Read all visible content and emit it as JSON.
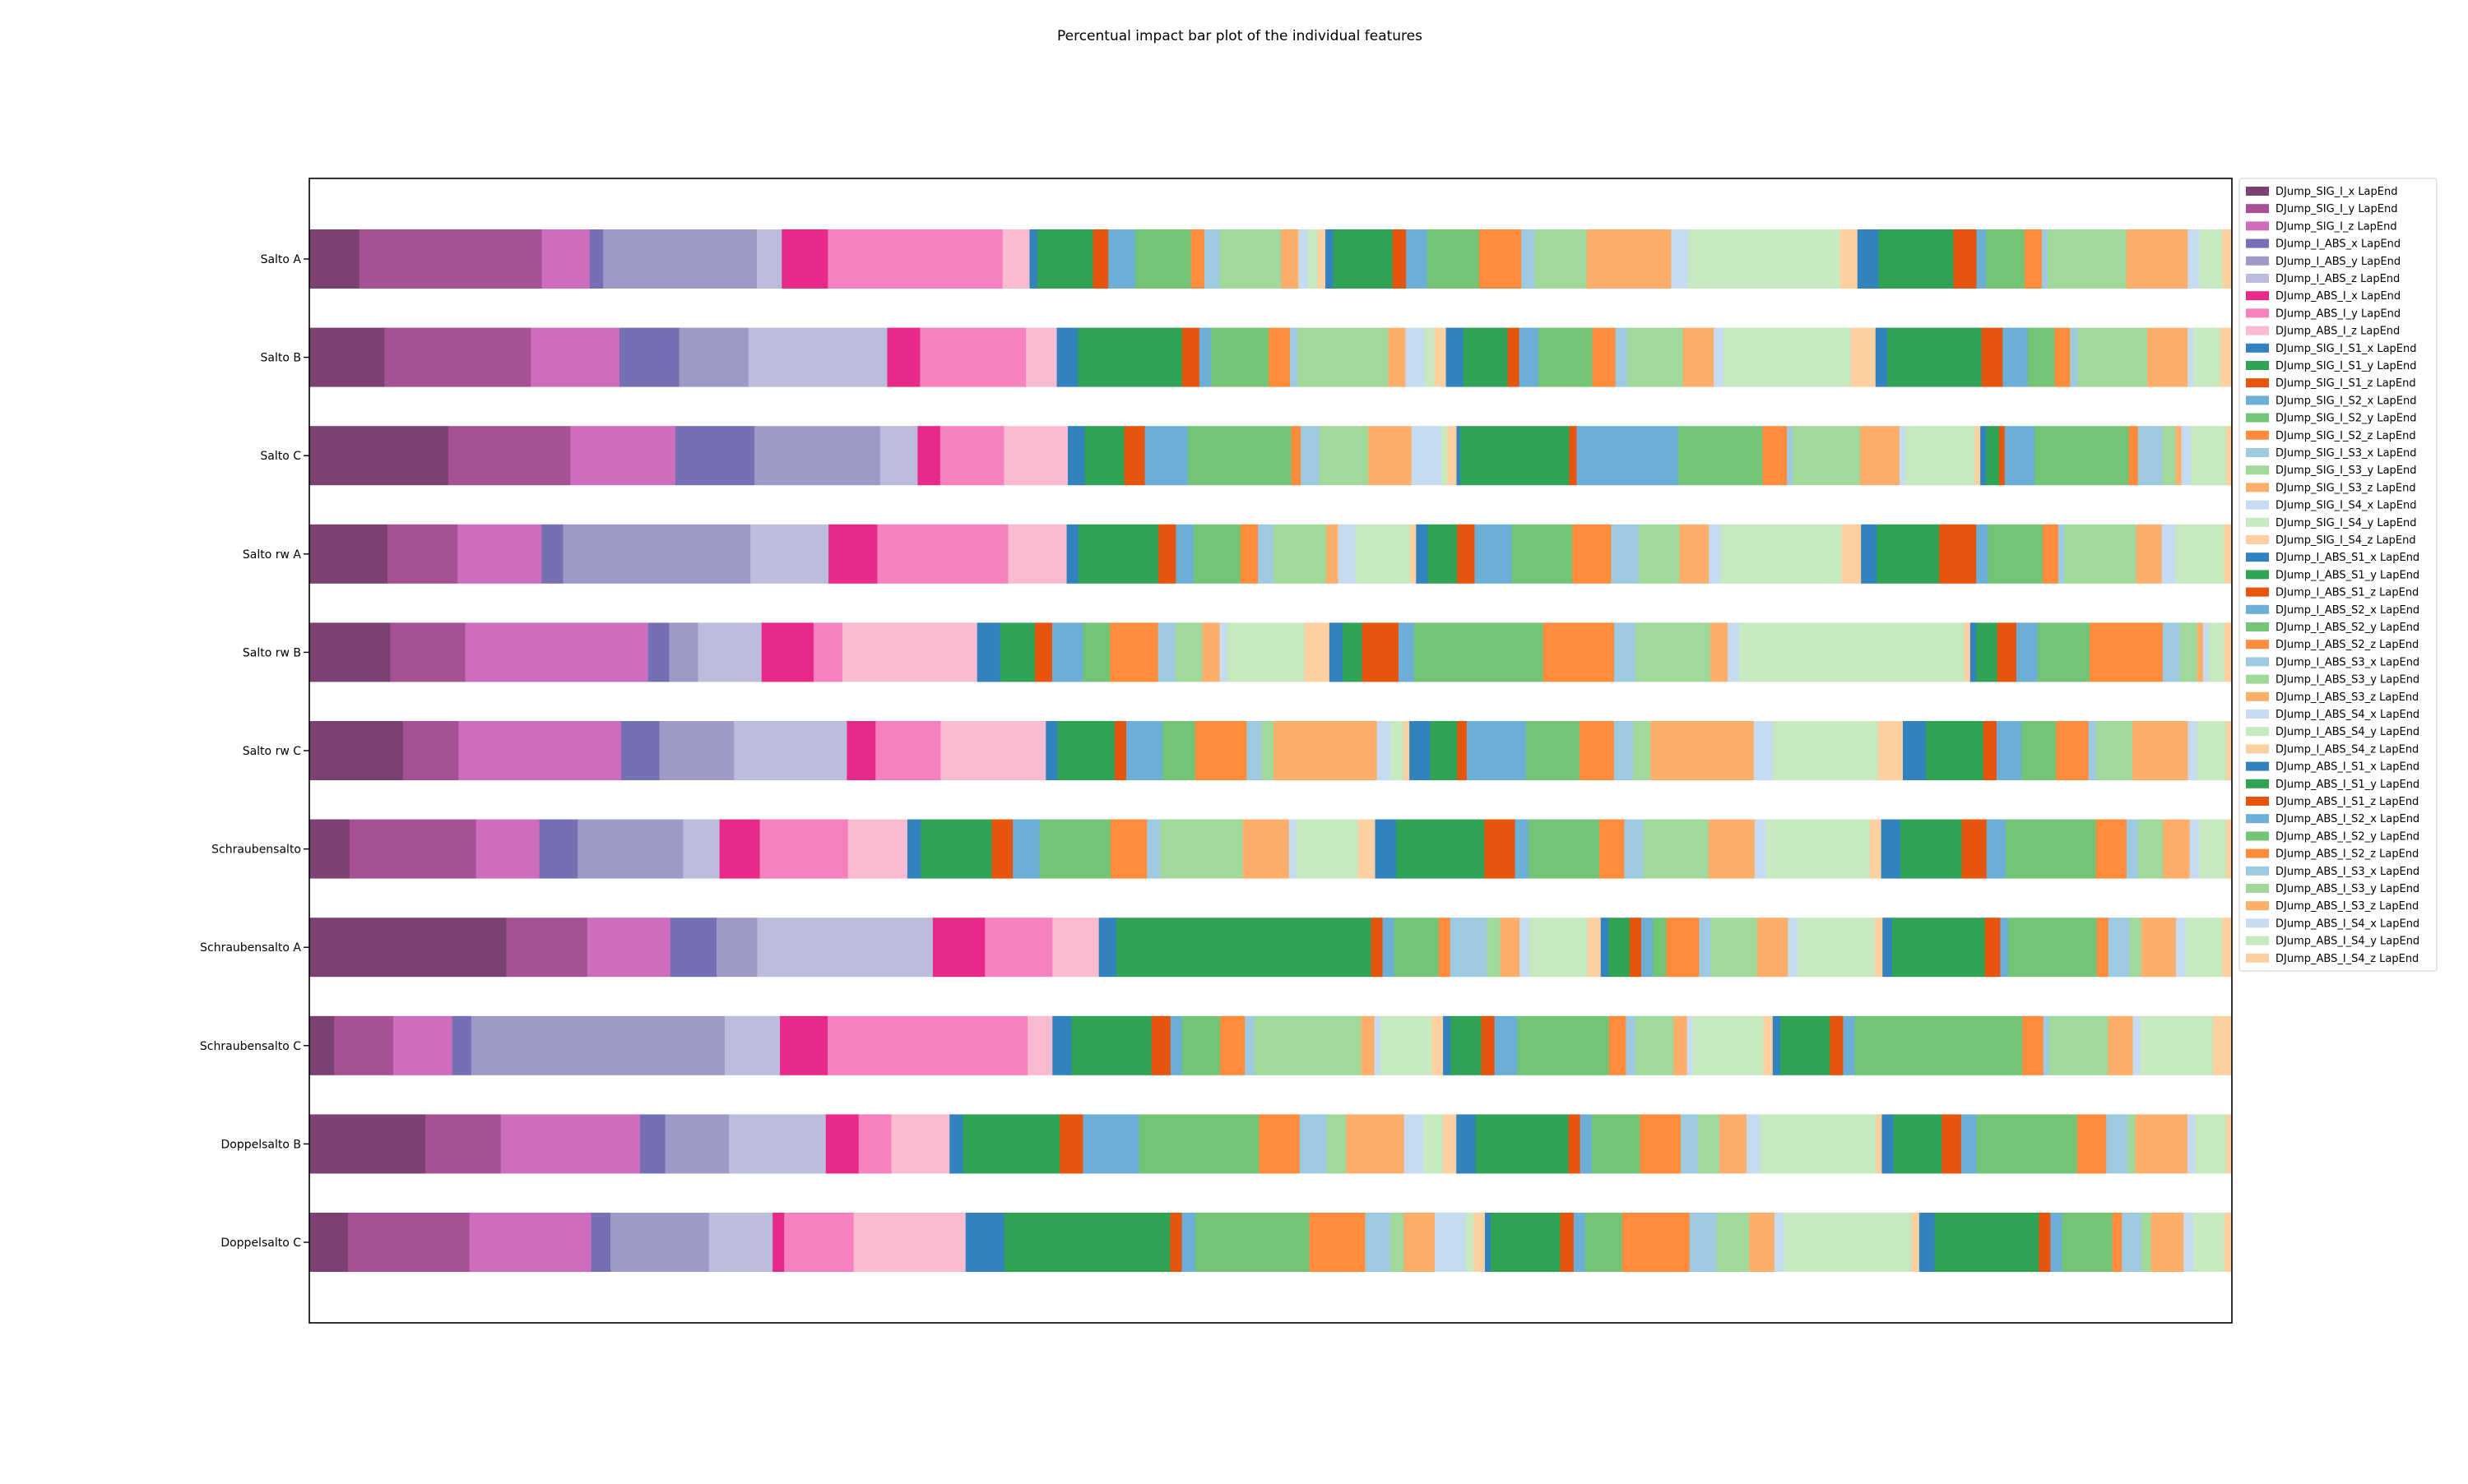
{
  "chart_data": {
    "type": "bar",
    "orientation": "horizontal",
    "stacked": true,
    "normalized": true,
    "title": "Percentual impact bar plot of the individual features",
    "xlabel": "",
    "ylabel": "",
    "xlim": [
      0,
      100
    ],
    "grid": false,
    "x_ticks_visible": false,
    "legend_position": "right, outside plot area",
    "categories": [
      "Salto A",
      "Salto B",
      "Salto C",
      "Salto rw A",
      "Salto rw B",
      "Salto rw C",
      "Schraubensalto",
      "Schraubensalto A",
      "Schraubensalto C",
      "Doppelsalto B",
      "Doppelsalto C"
    ],
    "series": [
      {
        "name": "DJump_SIG_I_x LapEnd",
        "color": "#7b4173",
        "values": [
          2.6,
          3.9,
          7.4,
          4.0,
          4.2,
          4.9,
          2.1,
          10.2,
          1.3,
          6.0,
          2.0
        ]
      },
      {
        "name": "DJump_SIG_I_y LapEnd",
        "color": "#a55194",
        "values": [
          9.5,
          7.6,
          6.5,
          3.6,
          3.9,
          2.9,
          6.6,
          4.2,
          3.1,
          3.9,
          6.3
        ]
      },
      {
        "name": "DJump_SIG_I_z LapEnd",
        "color": "#ce6dbd",
        "values": [
          2.5,
          4.6,
          5.6,
          4.3,
          9.5,
          8.5,
          3.3,
          4.3,
          3.1,
          7.2,
          6.3
        ]
      },
      {
        "name": "DJump_I_ABS_x LapEnd",
        "color": "#7570b3",
        "values": [
          0.7,
          3.1,
          4.2,
          1.1,
          1.1,
          2.0,
          2.0,
          2.4,
          1.0,
          1.3,
          1.0
        ]
      },
      {
        "name": "DJump_I_ABS_y LapEnd",
        "color": "#9e9ac8",
        "values": [
          8.0,
          3.6,
          6.7,
          9.6,
          1.5,
          3.9,
          5.5,
          2.1,
          13.3,
          3.3,
          5.1
        ]
      },
      {
        "name": "DJump_I_ABS_z LapEnd",
        "color": "#bcbddc",
        "values": [
          1.3,
          7.2,
          2.0,
          4.0,
          3.3,
          5.9,
          1.9,
          9.1,
          2.9,
          5.0,
          3.3
        ]
      },
      {
        "name": "DJump_ABS_I_x LapEnd",
        "color": "#e7298a",
        "values": [
          2.4,
          1.7,
          1.2,
          2.5,
          2.7,
          1.5,
          2.1,
          2.7,
          2.5,
          1.7,
          0.6
        ]
      },
      {
        "name": "DJump_ABS_I_y LapEnd",
        "color": "#f781bf",
        "values": [
          9.1,
          5.5,
          3.4,
          6.7,
          1.5,
          3.4,
          4.6,
          3.5,
          10.5,
          1.7,
          3.6
        ]
      },
      {
        "name": "DJump_ABS_I_z LapEnd",
        "color": "#f8bbd0",
        "values": [
          1.4,
          1.6,
          3.4,
          3.0,
          7.0,
          5.5,
          3.1,
          2.4,
          1.3,
          3.0,
          5.8
        ]
      },
      {
        "name": "DJump_SIG_I_S1_x LapEnd",
        "color": "#3182bd",
        "values": [
          0.4,
          1.1,
          0.9,
          0.6,
          1.2,
          0.6,
          0.7,
          0.9,
          1.0,
          0.7,
          2.0
        ]
      },
      {
        "name": "DJump_SIG_I_S1_y LapEnd",
        "color": "#31a354",
        "values": [
          2.9,
          5.4,
          2.1,
          4.1,
          1.8,
          3.0,
          3.7,
          13.2,
          4.2,
          5.0,
          8.6
        ]
      },
      {
        "name": "DJump_SIG_I_S1_z LapEnd",
        "color": "#e6550d",
        "values": [
          0.8,
          0.9,
          1.1,
          0.9,
          0.9,
          0.6,
          1.1,
          0.6,
          1.0,
          1.2,
          0.6
        ]
      },
      {
        "name": "DJump_SIG_I_S2_x LapEnd",
        "color": "#6baed6",
        "values": [
          1.4,
          0.6,
          2.3,
          0.9,
          1.6,
          1.9,
          1.4,
          0.6,
          0.6,
          2.9,
          0.7
        ]
      },
      {
        "name": "DJump_SIG_I_S2_y LapEnd",
        "color": "#74c476",
        "values": [
          2.9,
          3.0,
          5.5,
          2.4,
          1.4,
          1.7,
          3.7,
          2.3,
          2.0,
          6.2,
          5.9
        ]
      },
      {
        "name": "DJump_SIG_I_S2_z LapEnd",
        "color": "#fd8d3c",
        "values": [
          0.7,
          1.1,
          0.5,
          0.9,
          2.5,
          2.7,
          1.9,
          0.6,
          1.3,
          2.1,
          2.9
        ]
      },
      {
        "name": "DJump_SIG_I_S3_x LapEnd",
        "color": "#9ecae1",
        "values": [
          0.8,
          0.4,
          1.0,
          0.8,
          0.9,
          0.8,
          0.7,
          1.9,
          0.5,
          1.4,
          1.3
        ]
      },
      {
        "name": "DJump_SIG_I_S3_y LapEnd",
        "color": "#a1d99b",
        "values": [
          3.2,
          4.7,
          2.6,
          2.7,
          1.4,
          0.6,
          4.3,
          0.7,
          5.6,
          1.0,
          0.7
        ]
      },
      {
        "name": "DJump_SIG_I_S3_z LapEnd",
        "color": "#fdae6b",
        "values": [
          0.9,
          0.9,
          2.3,
          0.6,
          0.9,
          5.4,
          2.4,
          1.0,
          0.7,
          3.0,
          1.6
        ]
      },
      {
        "name": "DJump_SIG_I_S4_x LapEnd",
        "color": "#c6dbef",
        "values": [
          0.5,
          1.0,
          1.6,
          0.9,
          0.4,
          0.7,
          0.4,
          0.5,
          0.3,
          1.0,
          1.6
        ]
      },
      {
        "name": "DJump_SIG_I_S4_y LapEnd",
        "color": "#c7e9c0",
        "values": [
          0.5,
          0.5,
          0.3,
          2.8,
          4.0,
          0.7,
          3.2,
          3.0,
          2.7,
          1.0,
          0.4
        ]
      },
      {
        "name": "DJump_SIG_I_S4_z LapEnd",
        "color": "#fdd0a2",
        "values": [
          0.4,
          0.6,
          0.5,
          0.3,
          1.3,
          0.3,
          0.9,
          0.7,
          0.6,
          0.7,
          0.6
        ]
      },
      {
        "name": "DJump_I_ABS_S1_x LapEnd",
        "color": "#3182bd",
        "values": [
          0.4,
          0.9,
          0.2,
          0.6,
          0.7,
          1.1,
          1.1,
          0.4,
          0.4,
          1.0,
          0.3
        ]
      },
      {
        "name": "DJump_I_ABS_S1_y LapEnd",
        "color": "#31a354",
        "values": [
          3.1,
          2.3,
          5.8,
          1.5,
          1.0,
          1.4,
          4.6,
          1.1,
          1.6,
          4.8,
          3.6
        ]
      },
      {
        "name": "DJump_I_ABS_S1_z LapEnd",
        "color": "#e6550d",
        "values": [
          0.7,
          0.6,
          0.4,
          0.9,
          1.9,
          0.5,
          1.6,
          0.6,
          0.7,
          0.6,
          0.7
        ]
      },
      {
        "name": "DJump_I_ABS_S2_x LapEnd",
        "color": "#6baed6",
        "values": [
          1.1,
          1.0,
          5.4,
          1.9,
          0.8,
          3.1,
          0.7,
          0.6,
          1.2,
          0.6,
          0.6
        ]
      },
      {
        "name": "DJump_I_ABS_S2_y LapEnd",
        "color": "#74c476",
        "values": [
          2.7,
          2.8,
          4.5,
          3.1,
          6.7,
          2.8,
          3.7,
          0.7,
          4.8,
          2.5,
          1.9
        ]
      },
      {
        "name": "DJump_I_ABS_S2_z LapEnd",
        "color": "#fd8d3c",
        "values": [
          2.2,
          1.2,
          1.3,
          2.0,
          3.7,
          1.8,
          1.3,
          1.7,
          0.9,
          2.1,
          3.5
        ]
      },
      {
        "name": "DJump_I_ABS_S3_x LapEnd",
        "color": "#9ecae1",
        "values": [
          0.7,
          0.6,
          0.3,
          1.4,
          1.1,
          1.0,
          1.0,
          0.6,
          0.5,
          0.9,
          1.4
        ]
      },
      {
        "name": "DJump_I_ABS_S3_y LapEnd",
        "color": "#a1d99b",
        "values": [
          2.7,
          2.9,
          3.6,
          2.1,
          3.9,
          0.9,
          3.4,
          2.4,
          2.0,
          1.1,
          1.7
        ]
      },
      {
        "name": "DJump_I_ABS_S3_z LapEnd",
        "color": "#fdae6b",
        "values": [
          4.4,
          1.6,
          2.1,
          1.5,
          0.9,
          5.4,
          2.4,
          1.6,
          0.7,
          1.4,
          1.3
        ]
      },
      {
        "name": "DJump_I_ABS_S4_x LapEnd",
        "color": "#c6dbef",
        "values": [
          0.9,
          0.5,
          0.3,
          0.6,
          0.6,
          1.0,
          0.6,
          0.5,
          0.3,
          0.7,
          0.5
        ]
      },
      {
        "name": "DJump_I_ABS_S4_y LapEnd",
        "color": "#c7e9c0",
        "values": [
          7.9,
          6.6,
          3.7,
          6.2,
          11.7,
          5.5,
          5.4,
          4.0,
          3.7,
          6.0,
          6.6
        ]
      },
      {
        "name": "DJump_I_ABS_S4_z LapEnd",
        "color": "#fdd0a2",
        "values": [
          0.9,
          1.3,
          0.3,
          1.0,
          0.3,
          1.3,
          0.6,
          0.4,
          0.5,
          0.3,
          0.4
        ]
      },
      {
        "name": "DJump_ABS_I_S1_x LapEnd",
        "color": "#3182bd",
        "values": [
          1.1,
          0.6,
          0.3,
          0.8,
          0.3,
          1.2,
          1.0,
          0.5,
          0.4,
          0.6,
          0.8
        ]
      },
      {
        "name": "DJump_ABS_I_S1_y LapEnd",
        "color": "#31a354",
        "values": [
          3.9,
          4.9,
          0.7,
          3.2,
          1.1,
          3.0,
          3.2,
          4.8,
          2.6,
          2.5,
          5.4
        ]
      },
      {
        "name": "DJump_ABS_I_S1_z LapEnd",
        "color": "#e6550d",
        "values": [
          1.2,
          1.1,
          0.3,
          1.9,
          1.0,
          0.7,
          1.3,
          0.8,
          0.7,
          1.0,
          0.6
        ]
      },
      {
        "name": "DJump_ABS_I_S2_x LapEnd",
        "color": "#6baed6",
        "values": [
          0.5,
          1.3,
          1.6,
          0.6,
          1.1,
          1.3,
          1.0,
          0.4,
          0.6,
          0.8,
          0.6
        ]
      },
      {
        "name": "DJump_ABS_I_S2_y LapEnd",
        "color": "#74c476",
        "values": [
          2.0,
          1.4,
          5.0,
          2.8,
          2.7,
          1.8,
          4.7,
          4.6,
          8.8,
          5.2,
          2.6
        ]
      },
      {
        "name": "DJump_ABS_I_S2_z LapEnd",
        "color": "#fd8d3c",
        "values": [
          0.9,
          0.8,
          0.5,
          0.8,
          3.8,
          1.7,
          1.6,
          0.6,
          1.1,
          1.5,
          0.5
        ]
      },
      {
        "name": "DJump_ABS_I_S3_x LapEnd",
        "color": "#9ecae1",
        "values": [
          0.3,
          0.4,
          1.3,
          0.3,
          0.9,
          0.4,
          0.6,
          1.1,
          0.3,
          1.1,
          1.0
        ]
      },
      {
        "name": "DJump_ABS_I_S3_y LapEnd",
        "color": "#a1d99b",
        "values": [
          4.1,
          3.6,
          0.7,
          3.7,
          0.9,
          1.9,
          1.3,
          0.6,
          3.1,
          0.4,
          0.5
        ]
      },
      {
        "name": "DJump_ABS_I_S3_z LapEnd",
        "color": "#fdae6b",
        "values": [
          3.2,
          2.1,
          0.3,
          1.3,
          0.3,
          2.9,
          1.4,
          1.8,
          1.3,
          2.7,
          1.7
        ]
      },
      {
        "name": "DJump_ABS_I_S4_x LapEnd",
        "color": "#c6dbef",
        "values": [
          0.6,
          0.3,
          0.5,
          0.7,
          0.3,
          0.5,
          0.5,
          0.5,
          0.4,
          0.4,
          0.5
        ]
      },
      {
        "name": "DJump_ABS_I_S4_y LapEnd",
        "color": "#c7e9c0",
        "values": [
          1.2,
          1.4,
          1.9,
          2.5,
          0.8,
          1.5,
          1.4,
          1.9,
          3.8,
          1.6,
          1.6
        ]
      },
      {
        "name": "DJump_ABS_I_S4_z LapEnd",
        "color": "#fdd0a2",
        "values": [
          0.5,
          0.6,
          0.3,
          0.4,
          0.4,
          0.3,
          0.3,
          0.5,
          1.0,
          0.3,
          0.4
        ]
      }
    ]
  }
}
